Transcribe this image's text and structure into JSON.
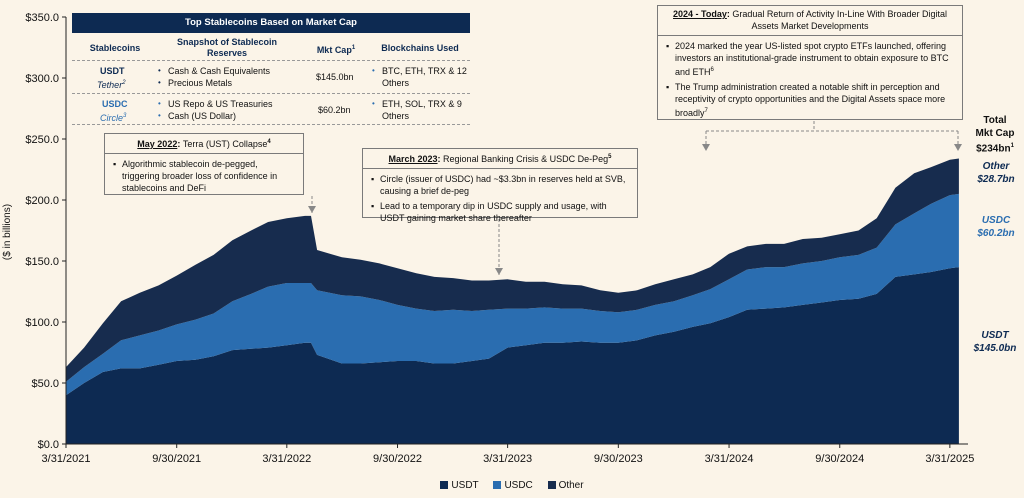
{
  "chart_data": {
    "type": "area",
    "stacked": true,
    "ylabel": "($ in billions)",
    "ylim": [
      0,
      350
    ],
    "yticks": [
      "$0.0",
      "$50.0",
      "$100.0",
      "$150.0",
      "$200.0",
      "$250.0",
      "$300.0",
      "$350.0"
    ],
    "xlim": [
      "2021-03-31",
      "2025-04-30"
    ],
    "xticks": [
      "3/31/2021",
      "9/30/2021",
      "3/31/2022",
      "9/30/2022",
      "3/31/2023",
      "9/30/2023",
      "3/31/2024",
      "9/30/2024",
      "3/31/2025"
    ],
    "grid": false,
    "legend_position": "bottom",
    "series": [
      {
        "name": "USDT",
        "color": "#0d2a52",
        "x": [
          "2021-03-31",
          "2021-04-30",
          "2021-05-31",
          "2021-06-30",
          "2021-07-31",
          "2021-08-31",
          "2021-09-30",
          "2021-10-31",
          "2021-11-30",
          "2021-12-31",
          "2022-01-31",
          "2022-02-28",
          "2022-03-31",
          "2022-04-30",
          "2022-05-10",
          "2022-05-20",
          "2022-06-30",
          "2022-07-31",
          "2022-08-31",
          "2022-09-30",
          "2022-10-31",
          "2022-11-30",
          "2022-12-31",
          "2023-01-31",
          "2023-02-28",
          "2023-03-31",
          "2023-04-30",
          "2023-05-31",
          "2023-06-30",
          "2023-07-31",
          "2023-08-31",
          "2023-09-30",
          "2023-10-31",
          "2023-11-30",
          "2023-12-31",
          "2024-01-31",
          "2024-02-29",
          "2024-03-31",
          "2024-04-30",
          "2024-05-31",
          "2024-06-30",
          "2024-07-31",
          "2024-08-31",
          "2024-09-30",
          "2024-10-31",
          "2024-11-30",
          "2024-12-31",
          "2025-01-31",
          "2025-02-28",
          "2025-03-31",
          "2025-04-15"
        ],
        "values": [
          40,
          50,
          59,
          62,
          62,
          65,
          68,
          69,
          72,
          77,
          78,
          79,
          81,
          83,
          83,
          73,
          66,
          66,
          67,
          68,
          68,
          66,
          66,
          68,
          70,
          79,
          81,
          83,
          83,
          84,
          83,
          83,
          85,
          89,
          92,
          96,
          99,
          104,
          110,
          111,
          112,
          114,
          116,
          118,
          119,
          123,
          137,
          139,
          141,
          144,
          145
        ]
      },
      {
        "name": "USDC",
        "color": "#2a6db0",
        "x": [
          "2021-03-31",
          "2021-04-30",
          "2021-05-31",
          "2021-06-30",
          "2021-07-31",
          "2021-08-31",
          "2021-09-30",
          "2021-10-31",
          "2021-11-30",
          "2021-12-31",
          "2022-01-31",
          "2022-02-28",
          "2022-03-31",
          "2022-04-30",
          "2022-05-10",
          "2022-05-20",
          "2022-06-30",
          "2022-07-31",
          "2022-08-31",
          "2022-09-30",
          "2022-10-31",
          "2022-11-30",
          "2022-12-31",
          "2023-01-31",
          "2023-02-28",
          "2023-03-31",
          "2023-04-30",
          "2023-05-31",
          "2023-06-30",
          "2023-07-31",
          "2023-08-31",
          "2023-09-30",
          "2023-10-31",
          "2023-11-30",
          "2023-12-31",
          "2024-01-31",
          "2024-02-29",
          "2024-03-31",
          "2024-04-30",
          "2024-05-31",
          "2024-06-30",
          "2024-07-31",
          "2024-08-31",
          "2024-09-30",
          "2024-10-31",
          "2024-11-30",
          "2024-12-31",
          "2025-01-31",
          "2025-02-28",
          "2025-03-31",
          "2025-04-15"
        ],
        "values": [
          11,
          13,
          15,
          23,
          27,
          28,
          30,
          33,
          35,
          40,
          45,
          50,
          51,
          49,
          49,
          53,
          56,
          55,
          51,
          46,
          43,
          43,
          44,
          41,
          40,
          32,
          30,
          29,
          28,
          27,
          26,
          25,
          25,
          25,
          25,
          26,
          28,
          31,
          33,
          34,
          33,
          34,
          34,
          35,
          36,
          38,
          43,
          50,
          56,
          60,
          60
        ]
      },
      {
        "name": "Other",
        "color": "#172c4e",
        "x": [
          "2021-03-31",
          "2021-04-30",
          "2021-05-31",
          "2021-06-30",
          "2021-07-31",
          "2021-08-31",
          "2021-09-30",
          "2021-10-31",
          "2021-11-30",
          "2021-12-31",
          "2022-01-31",
          "2022-02-28",
          "2022-03-31",
          "2022-04-30",
          "2022-05-10",
          "2022-05-20",
          "2022-06-30",
          "2022-07-31",
          "2022-08-31",
          "2022-09-30",
          "2022-10-31",
          "2022-11-30",
          "2022-12-31",
          "2023-01-31",
          "2023-02-28",
          "2023-03-31",
          "2023-04-30",
          "2023-05-31",
          "2023-06-30",
          "2023-07-31",
          "2023-08-31",
          "2023-09-30",
          "2023-10-31",
          "2023-11-30",
          "2023-12-31",
          "2024-01-31",
          "2024-02-29",
          "2024-03-31",
          "2024-04-30",
          "2024-05-31",
          "2024-06-30",
          "2024-07-31",
          "2024-08-31",
          "2024-09-30",
          "2024-10-31",
          "2024-11-30",
          "2024-12-31",
          "2025-01-31",
          "2025-02-28",
          "2025-03-31",
          "2025-04-15"
        ],
        "values": [
          12,
          16,
          25,
          32,
          35,
          37,
          40,
          45,
          48,
          50,
          52,
          53,
          53,
          55,
          55,
          33,
          31,
          30,
          30,
          30,
          29,
          28,
          26,
          25,
          24,
          24,
          22,
          21,
          20,
          19,
          17,
          16,
          16,
          17,
          18,
          17,
          18,
          21,
          19,
          19,
          19,
          20,
          19,
          19,
          20,
          24,
          30,
          33,
          30,
          29,
          29
        ]
      }
    ]
  },
  "table": {
    "title": "Top Stablecoins Based on Market Cap",
    "headers": {
      "stablecoins": "Stablecoins",
      "reserves": "Snapshot of Stablecoin Reserves",
      "mktcap": "Mkt Cap",
      "mktcap_sup": "1",
      "chains": "Blockchains Used"
    },
    "rows": [
      {
        "name": "USDT",
        "issuer": "Tether",
        "issuer_sup": "2",
        "reserves": [
          "Cash & Cash Equivalents",
          "Precious Metals"
        ],
        "mktcap": "$145.0bn",
        "chains": "BTC, ETH, TRX & 12 Others"
      },
      {
        "name": "USDC",
        "issuer": "Circle",
        "issuer_sup": "3",
        "reserves": [
          "US Repo & US Treasuries",
          "Cash (US Dollar)"
        ],
        "mktcap": "$60.2bn",
        "chains": "ETH, SOL, TRX & 9 Others"
      }
    ]
  },
  "annotations": {
    "terra": {
      "date": "May 2022",
      "title": "Terra (UST) Collapse",
      "sup": "4",
      "bullets": [
        "Algorithmic stablecoin de-pegged, triggering broader loss of confidence in stablecoins and DeFi"
      ]
    },
    "svb": {
      "date": "March 2023",
      "title": "Regional Banking Crisis & USDC De-Peg",
      "sup": "5",
      "bullets": [
        "Circle (issuer of USDC) had ~$3.3bn in reserves held at SVB, causing a brief de-peg",
        "Lead to a temporary dip in USDC supply and usage, with USDT gaining market share thereafter"
      ]
    },
    "today": {
      "date": "2024 - Today",
      "title": "Gradual Return of Activity In-Line With Broader Digital Assets Market Developments",
      "bullets": [
        "2024 marked the year US-listed spot crypto ETFs launched, offering investors an institutional-grade instrument to obtain exposure to BTC and ETH",
        "The Trump administration created a notable shift in perception and receptivity of crypto opportunities and the Digital Assets space more broadly"
      ],
      "sups": [
        "6",
        "7"
      ]
    }
  },
  "end_labels": {
    "total_line1": "Total",
    "total_line2": "Mkt Cap",
    "total_value": "$234bn",
    "total_sup": "1",
    "other_name": "Other",
    "other_value": "$28.7bn",
    "usdc_name": "USDC",
    "usdc_value": "$60.2bn",
    "usdt_name": "USDT",
    "usdt_value": "$145.0bn"
  },
  "legend": [
    "USDT",
    "USDC",
    "Other"
  ]
}
